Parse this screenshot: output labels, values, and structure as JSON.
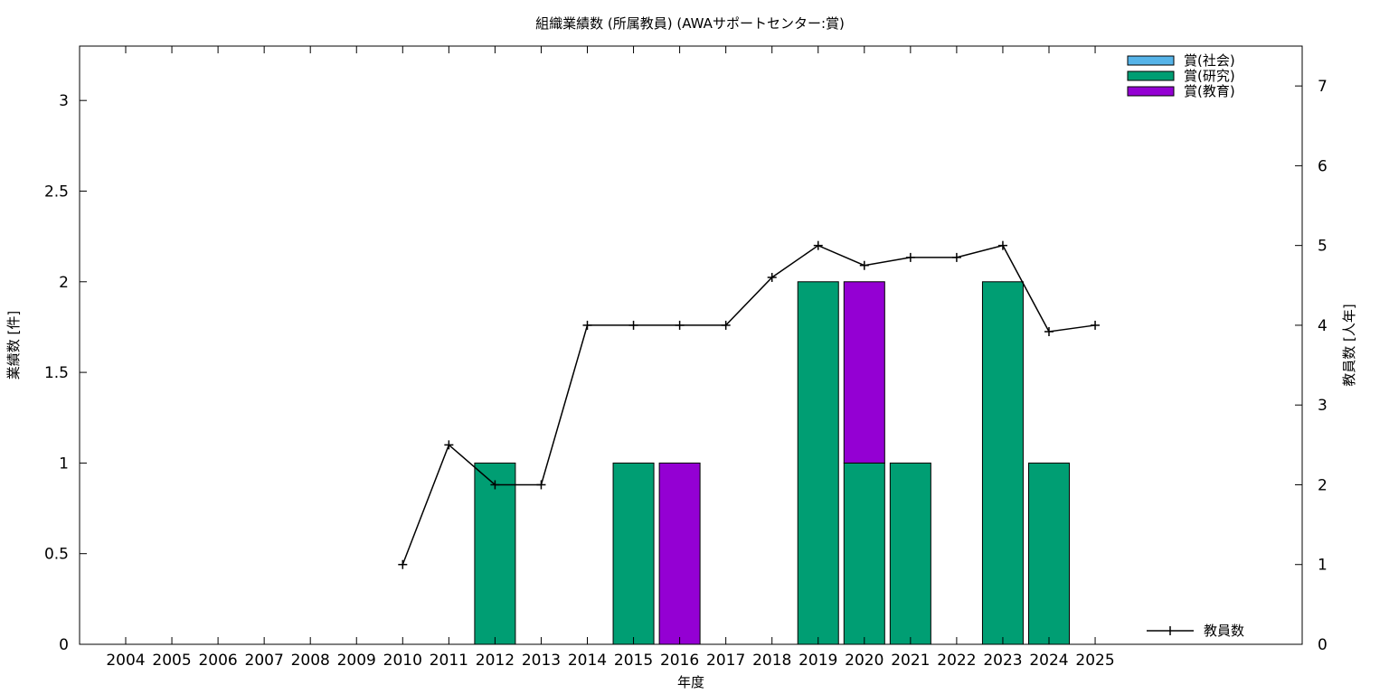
{
  "chart_data": {
    "type": "bar",
    "title": "組織業績数 (所属教員) (AWAサポートセンター:賞)",
    "xlabel": "年度",
    "ylabel": "業績数 [件]",
    "y2label": "教員数 [人年]",
    "categories": [
      "2004",
      "2005",
      "2006",
      "2007",
      "2008",
      "2009",
      "2010",
      "2011",
      "2012",
      "2013",
      "2014",
      "2015",
      "2016",
      "2017",
      "2018",
      "2019",
      "2020",
      "2021",
      "2022",
      "2023",
      "2024",
      "2025"
    ],
    "ylim": [
      0,
      3.3
    ],
    "yticks": [
      0,
      0.5,
      1,
      1.5,
      2,
      2.5,
      3
    ],
    "ytick_labels": [
      "0",
      "0.5",
      "1",
      "1.5",
      "2",
      "2.5",
      "3"
    ],
    "y2lim": [
      0,
      7.5
    ],
    "y2ticks": [
      0,
      1,
      2,
      3,
      4,
      5,
      6,
      7
    ],
    "y2tick_labels": [
      "0",
      "1",
      "2",
      "3",
      "4",
      "5",
      "6",
      "7"
    ],
    "stacked": true,
    "series": [
      {
        "name": "賞(社会)",
        "color": "#56b4e9",
        "values": [
          0,
          0,
          0,
          0,
          0,
          0,
          0,
          0,
          0,
          0,
          0,
          0,
          0,
          0,
          0,
          0,
          0,
          0,
          0,
          0,
          0,
          0
        ]
      },
      {
        "name": "賞(研究)",
        "color": "#009e73",
        "values": [
          0,
          0,
          0,
          0,
          0,
          0,
          0,
          0,
          1,
          0,
          0,
          1,
          0,
          0,
          0,
          2,
          1,
          1,
          0,
          2,
          1,
          0
        ]
      },
      {
        "name": "賞(教育)",
        "color": "#9400d3",
        "values": [
          0,
          0,
          0,
          0,
          0,
          0,
          0,
          0,
          0,
          0,
          0,
          0,
          1,
          0,
          0,
          0,
          1,
          0,
          0,
          0,
          0,
          0
        ]
      }
    ],
    "line_series": {
      "name": "教員数",
      "color": "#000000",
      "axis": "right",
      "values": [
        null,
        null,
        null,
        null,
        null,
        null,
        1,
        2.5,
        2,
        2,
        4,
        4,
        4,
        4,
        4.6,
        5,
        4.75,
        4.85,
        4.85,
        5,
        3.92,
        4
      ]
    },
    "legend_position": "top-right",
    "line_legend_position": "bottom-right",
    "grid": false
  }
}
